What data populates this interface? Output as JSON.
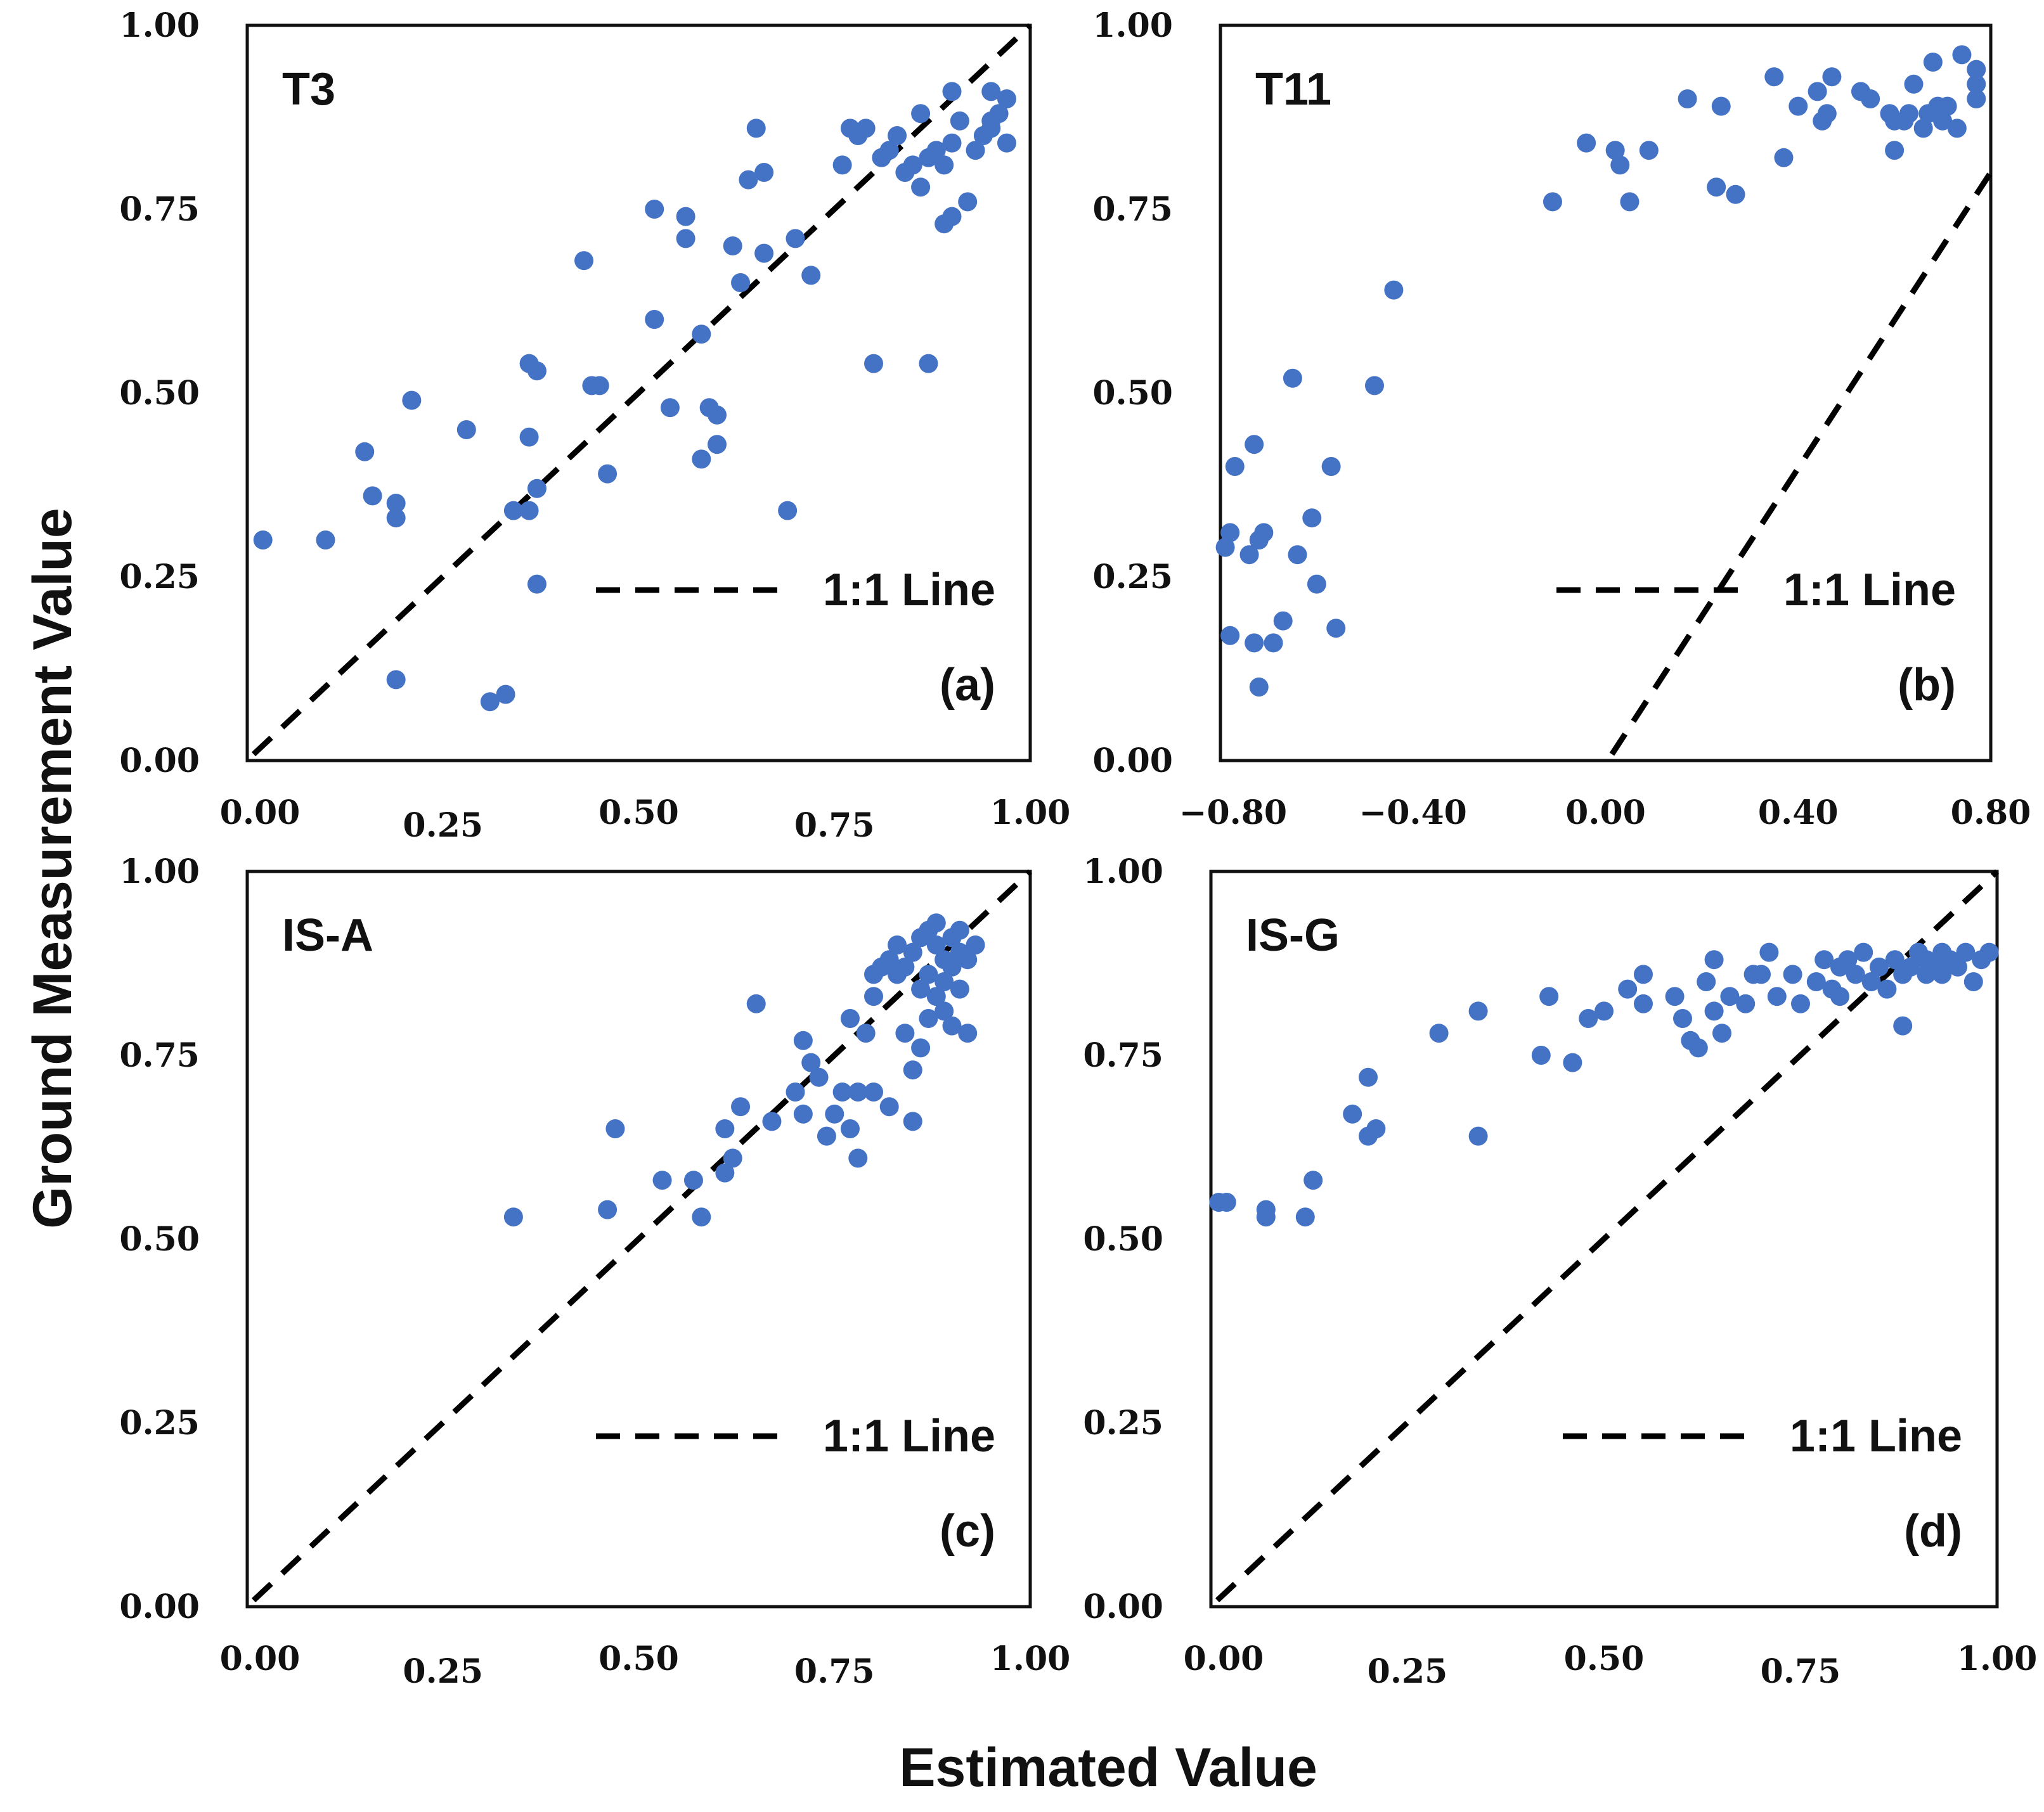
{
  "figure": {
    "ylabel": "Ground Measurement Value",
    "xlabel": "Estimated Value",
    "point_color": "#4472C4",
    "line_color": "#000000"
  },
  "chart_data": [
    {
      "type": "scatter",
      "title": "T3",
      "panel_label": "(a)",
      "legend": "1:1 Line",
      "legend_placement": "bottom-right",
      "xlim": [
        0,
        1
      ],
      "ylim": [
        0,
        1
      ],
      "xticks": [
        "0.00",
        "0.25",
        "0.50",
        "0.75",
        "1.00"
      ],
      "yticks": [
        "0.00",
        "0.25",
        "0.50",
        "0.75",
        "1.00"
      ],
      "reference_line": "1:1",
      "points": [
        [
          0.02,
          0.3
        ],
        [
          0.1,
          0.3
        ],
        [
          0.15,
          0.42
        ],
        [
          0.16,
          0.36
        ],
        [
          0.19,
          0.35
        ],
        [
          0.19,
          0.33
        ],
        [
          0.21,
          0.49
        ],
        [
          0.19,
          0.11
        ],
        [
          0.28,
          0.45
        ],
        [
          0.31,
          0.08
        ],
        [
          0.33,
          0.09
        ],
        [
          0.34,
          0.34
        ],
        [
          0.36,
          0.34
        ],
        [
          0.36,
          0.44
        ],
        [
          0.37,
          0.37
        ],
        [
          0.37,
          0.24
        ],
        [
          0.36,
          0.54
        ],
        [
          0.37,
          0.53
        ],
        [
          0.43,
          0.68
        ],
        [
          0.44,
          0.51
        ],
        [
          0.45,
          0.51
        ],
        [
          0.46,
          0.39
        ],
        [
          0.52,
          0.75
        ],
        [
          0.52,
          0.6
        ],
        [
          0.54,
          0.48
        ],
        [
          0.56,
          0.74
        ],
        [
          0.56,
          0.71
        ],
        [
          0.58,
          0.41
        ],
        [
          0.58,
          0.58
        ],
        [
          0.59,
          0.48
        ],
        [
          0.6,
          0.47
        ],
        [
          0.6,
          0.43
        ],
        [
          0.62,
          0.7
        ],
        [
          0.63,
          0.65
        ],
        [
          0.64,
          0.79
        ],
        [
          0.65,
          0.86
        ],
        [
          0.66,
          0.8
        ],
        [
          0.66,
          0.69
        ],
        [
          0.69,
          0.34
        ],
        [
          0.7,
          0.71
        ],
        [
          0.72,
          0.66
        ],
        [
          0.76,
          0.81
        ],
        [
          0.77,
          0.86
        ],
        [
          0.78,
          0.85
        ],
        [
          0.79,
          0.86
        ],
        [
          0.8,
          0.54
        ],
        [
          0.81,
          0.82
        ],
        [
          0.82,
          0.83
        ],
        [
          0.83,
          0.85
        ],
        [
          0.84,
          0.8
        ],
        [
          0.85,
          0.81
        ],
        [
          0.86,
          0.88
        ],
        [
          0.86,
          0.78
        ],
        [
          0.87,
          0.54
        ],
        [
          0.87,
          0.82
        ],
        [
          0.88,
          0.83
        ],
        [
          0.89,
          0.73
        ],
        [
          0.89,
          0.81
        ],
        [
          0.9,
          0.74
        ],
        [
          0.9,
          0.84
        ],
        [
          0.9,
          0.91
        ],
        [
          0.91,
          0.87
        ],
        [
          0.92,
          0.76
        ],
        [
          0.93,
          0.83
        ],
        [
          0.94,
          0.85
        ],
        [
          0.95,
          0.87
        ],
        [
          0.95,
          0.86
        ],
        [
          0.95,
          0.91
        ],
        [
          0.96,
          0.88
        ],
        [
          0.97,
          0.84
        ],
        [
          0.97,
          0.9
        ]
      ]
    },
    {
      "type": "scatter",
      "title": "T11",
      "panel_label": "(b)",
      "legend": "1:1 Line",
      "legend_placement": "bottom-right",
      "xlim": [
        -0.8,
        0.8
      ],
      "ylim": [
        0,
        1
      ],
      "xticks": [
        "−0.80",
        "−0.40",
        "0.00",
        "0.40",
        "0.80"
      ],
      "yticks": [
        "0.00",
        "0.25",
        "0.50",
        "0.75",
        "1.00"
      ],
      "reference_line": "1:1",
      "points": [
        [
          -0.79,
          0.29
        ],
        [
          -0.78,
          0.31
        ],
        [
          -0.78,
          0.17
        ],
        [
          -0.77,
          0.4
        ],
        [
          -0.74,
          0.28
        ],
        [
          -0.73,
          0.43
        ],
        [
          -0.73,
          0.16
        ],
        [
          -0.72,
          0.1
        ],
        [
          -0.72,
          0.3
        ],
        [
          -0.71,
          0.31
        ],
        [
          -0.69,
          0.16
        ],
        [
          -0.67,
          0.19
        ],
        [
          -0.65,
          0.52
        ],
        [
          -0.64,
          0.28
        ],
        [
          -0.61,
          0.33
        ],
        [
          -0.6,
          0.24
        ],
        [
          -0.57,
          0.4
        ],
        [
          -0.56,
          0.18
        ],
        [
          -0.48,
          0.51
        ],
        [
          -0.44,
          0.64
        ],
        [
          -0.11,
          0.76
        ],
        [
          -0.04,
          0.84
        ],
        [
          0.02,
          0.83
        ],
        [
          0.03,
          0.81
        ],
        [
          0.05,
          0.76
        ],
        [
          0.09,
          0.83
        ],
        [
          0.17,
          0.9
        ],
        [
          0.23,
          0.78
        ],
        [
          0.24,
          0.89
        ],
        [
          0.27,
          0.77
        ],
        [
          0.35,
          0.93
        ],
        [
          0.37,
          0.82
        ],
        [
          0.4,
          0.89
        ],
        [
          0.44,
          0.91
        ],
        [
          0.45,
          0.87
        ],
        [
          0.46,
          0.88
        ],
        [
          0.47,
          0.93
        ],
        [
          0.53,
          0.91
        ],
        [
          0.55,
          0.9
        ],
        [
          0.59,
          0.88
        ],
        [
          0.6,
          0.87
        ],
        [
          0.6,
          0.83
        ],
        [
          0.62,
          0.87
        ],
        [
          0.63,
          0.88
        ],
        [
          0.64,
          0.92
        ],
        [
          0.66,
          0.86
        ],
        [
          0.67,
          0.88
        ],
        [
          0.68,
          0.95
        ],
        [
          0.69,
          0.89
        ],
        [
          0.7,
          0.87
        ],
        [
          0.71,
          0.89
        ],
        [
          0.73,
          0.86
        ],
        [
          0.74,
          0.96
        ],
        [
          0.77,
          0.92
        ],
        [
          0.77,
          0.94
        ],
        [
          0.77,
          0.9
        ]
      ]
    },
    {
      "type": "scatter",
      "title": "IS-A",
      "panel_label": "(c)",
      "legend": "1:1 Line",
      "legend_placement": "bottom-right",
      "xlim": [
        0,
        1
      ],
      "ylim": [
        0,
        1
      ],
      "xticks": [
        "0.00",
        "0.25",
        "0.50",
        "0.75",
        "1.00"
      ],
      "yticks": [
        "0.00",
        "0.25",
        "0.50",
        "0.75",
        "1.00"
      ],
      "reference_line": "1:1",
      "points": [
        [
          0.34,
          0.53
        ],
        [
          0.46,
          0.54
        ],
        [
          0.47,
          0.65
        ],
        [
          0.53,
          0.58
        ],
        [
          0.57,
          0.58
        ],
        [
          0.58,
          0.53
        ],
        [
          0.61,
          0.65
        ],
        [
          0.61,
          0.59
        ],
        [
          0.62,
          0.61
        ],
        [
          0.63,
          0.68
        ],
        [
          0.65,
          0.82
        ],
        [
          0.67,
          0.66
        ],
        [
          0.7,
          0.7
        ],
        [
          0.71,
          0.77
        ],
        [
          0.71,
          0.67
        ],
        [
          0.72,
          0.74
        ],
        [
          0.73,
          0.72
        ],
        [
          0.74,
          0.64
        ],
        [
          0.75,
          0.67
        ],
        [
          0.76,
          0.7
        ],
        [
          0.77,
          0.8
        ],
        [
          0.77,
          0.65
        ],
        [
          0.78,
          0.61
        ],
        [
          0.78,
          0.7
        ],
        [
          0.79,
          0.78
        ],
        [
          0.8,
          0.86
        ],
        [
          0.8,
          0.83
        ],
        [
          0.8,
          0.7
        ],
        [
          0.81,
          0.87
        ],
        [
          0.82,
          0.88
        ],
        [
          0.82,
          0.68
        ],
        [
          0.83,
          0.9
        ],
        [
          0.83,
          0.86
        ],
        [
          0.84,
          0.78
        ],
        [
          0.84,
          0.87
        ],
        [
          0.85,
          0.73
        ],
        [
          0.85,
          0.66
        ],
        [
          0.85,
          0.89
        ],
        [
          0.86,
          0.84
        ],
        [
          0.86,
          0.91
        ],
        [
          0.86,
          0.76
        ],
        [
          0.87,
          0.92
        ],
        [
          0.87,
          0.86
        ],
        [
          0.87,
          0.8
        ],
        [
          0.88,
          0.9
        ],
        [
          0.88,
          0.83
        ],
        [
          0.88,
          0.93
        ],
        [
          0.89,
          0.88
        ],
        [
          0.89,
          0.81
        ],
        [
          0.89,
          0.85
        ],
        [
          0.9,
          0.91
        ],
        [
          0.9,
          0.87
        ],
        [
          0.9,
          0.79
        ],
        [
          0.91,
          0.92
        ],
        [
          0.91,
          0.89
        ],
        [
          0.91,
          0.84
        ],
        [
          0.92,
          0.88
        ],
        [
          0.92,
          0.78
        ],
        [
          0.93,
          0.9
        ]
      ]
    },
    {
      "type": "scatter",
      "title": "IS-G",
      "panel_label": "(d)",
      "legend": "1:1 Line",
      "legend_placement": "bottom-right",
      "xlim": [
        0,
        1
      ],
      "ylim": [
        0,
        1
      ],
      "xticks": [
        "0.00",
        "0.25",
        "0.50",
        "0.75",
        "1.00"
      ],
      "yticks": [
        "0.00",
        "0.25",
        "0.50",
        "0.75",
        "1.00"
      ],
      "reference_line": "1:1",
      "points": [
        [
          0.01,
          0.55
        ],
        [
          0.02,
          0.55
        ],
        [
          0.07,
          0.53
        ],
        [
          0.07,
          0.54
        ],
        [
          0.12,
          0.53
        ],
        [
          0.13,
          0.58
        ],
        [
          0.18,
          0.67
        ],
        [
          0.2,
          0.72
        ],
        [
          0.2,
          0.64
        ],
        [
          0.21,
          0.65
        ],
        [
          0.29,
          0.78
        ],
        [
          0.34,
          0.64
        ],
        [
          0.34,
          0.81
        ],
        [
          0.42,
          0.75
        ],
        [
          0.43,
          0.83
        ],
        [
          0.46,
          0.74
        ],
        [
          0.48,
          0.8
        ],
        [
          0.5,
          0.81
        ],
        [
          0.53,
          0.84
        ],
        [
          0.55,
          0.86
        ],
        [
          0.55,
          0.82
        ],
        [
          0.59,
          0.83
        ],
        [
          0.6,
          0.8
        ],
        [
          0.61,
          0.77
        ],
        [
          0.62,
          0.76
        ],
        [
          0.63,
          0.85
        ],
        [
          0.64,
          0.88
        ],
        [
          0.64,
          0.81
        ],
        [
          0.65,
          0.78
        ],
        [
          0.66,
          0.83
        ],
        [
          0.68,
          0.82
        ],
        [
          0.69,
          0.86
        ],
        [
          0.7,
          0.86
        ],
        [
          0.71,
          0.89
        ],
        [
          0.72,
          0.83
        ],
        [
          0.74,
          0.86
        ],
        [
          0.75,
          0.82
        ],
        [
          0.77,
          0.85
        ],
        [
          0.78,
          0.88
        ],
        [
          0.79,
          0.84
        ],
        [
          0.8,
          0.87
        ],
        [
          0.8,
          0.83
        ],
        [
          0.81,
          0.88
        ],
        [
          0.82,
          0.86
        ],
        [
          0.83,
          0.89
        ],
        [
          0.84,
          0.85
        ],
        [
          0.85,
          0.87
        ],
        [
          0.86,
          0.84
        ],
        [
          0.87,
          0.88
        ],
        [
          0.88,
          0.79
        ],
        [
          0.88,
          0.86
        ],
        [
          0.89,
          0.87
        ],
        [
          0.9,
          0.89
        ],
        [
          0.91,
          0.86
        ],
        [
          0.91,
          0.88
        ],
        [
          0.92,
          0.87
        ],
        [
          0.93,
          0.89
        ],
        [
          0.93,
          0.86
        ],
        [
          0.94,
          0.88
        ],
        [
          0.95,
          0.87
        ],
        [
          0.96,
          0.89
        ],
        [
          0.97,
          0.85
        ],
        [
          0.98,
          0.88
        ],
        [
          0.99,
          0.89
        ]
      ]
    }
  ]
}
